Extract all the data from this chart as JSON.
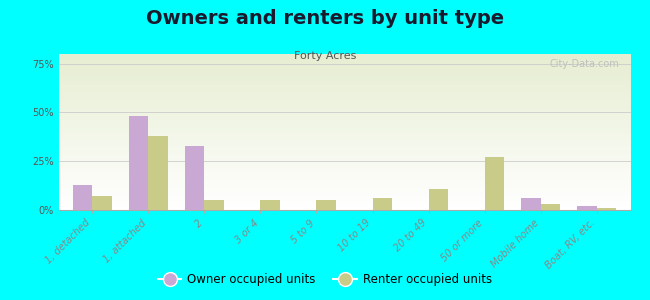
{
  "title": "Owners and renters by unit type",
  "subtitle": "Forty Acres",
  "categories": [
    "1, detached",
    "1, attached",
    "2",
    "3 or 4",
    "5 to 9",
    "10 to 19",
    "20 to 49",
    "50 or more",
    "Mobile home",
    "Boat, RV, etc."
  ],
  "owner_values": [
    13,
    48,
    33,
    0,
    0,
    0,
    0,
    0,
    6,
    2
  ],
  "renter_values": [
    7,
    38,
    5,
    5,
    5,
    6,
    11,
    27,
    3,
    1
  ],
  "owner_color": "#c9a8d4",
  "renter_color": "#c8cc88",
  "ylim": [
    0,
    80
  ],
  "yticks": [
    0,
    25,
    50,
    75
  ],
  "ytick_labels": [
    "0%",
    "25%",
    "50%",
    "75%"
  ],
  "background_color": "#00ffff",
  "title_fontsize": 14,
  "subtitle_fontsize": 8,
  "legend_owner": "Owner occupied units",
  "legend_renter": "Renter occupied units",
  "watermark": "City-Data.com"
}
